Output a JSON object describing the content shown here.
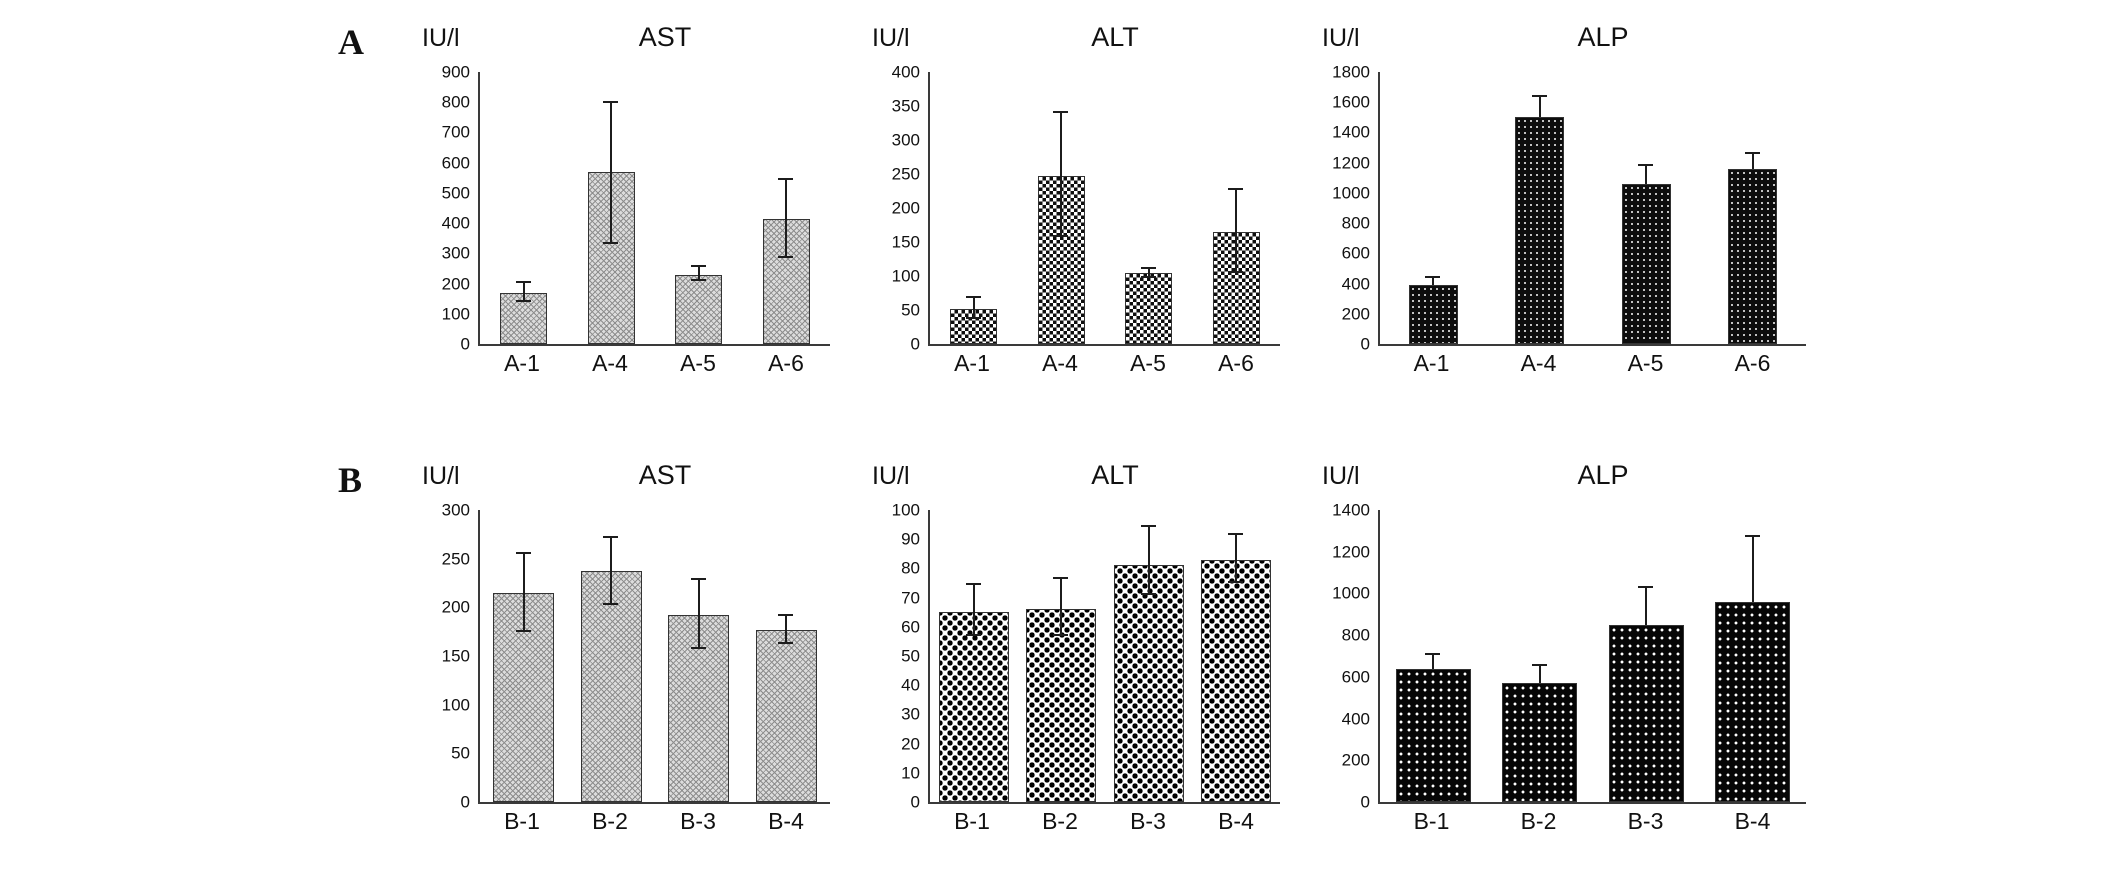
{
  "panels": [
    {
      "label": "A"
    },
    {
      "label": "B"
    }
  ],
  "chart_data": [
    {
      "panel": "A",
      "type": "bar",
      "title": "AST",
      "ylabel": "IU/l",
      "categories": [
        "A-1",
        "A-4",
        "A-5",
        "A-6"
      ],
      "values": [
        170,
        570,
        230,
        415
      ],
      "err_up": [
        40,
        235,
        30,
        135
      ],
      "err_dn": [
        30,
        240,
        20,
        130
      ],
      "ylim": [
        0,
        900
      ],
      "ytick": 100,
      "grid": false,
      "legend": "none",
      "pattern": "p-graycross"
    },
    {
      "panel": "A",
      "type": "bar",
      "title": "ALT",
      "ylabel": "IU/l",
      "categories": [
        "A-1",
        "A-4",
        "A-5",
        "A-6"
      ],
      "values": [
        52,
        247,
        105,
        165
      ],
      "err_up": [
        18,
        95,
        8,
        65
      ],
      "err_dn": [
        15,
        90,
        8,
        60
      ],
      "ylim": [
        0,
        400
      ],
      "ytick": 50,
      "grid": false,
      "legend": "none",
      "pattern": "p-checker"
    },
    {
      "panel": "A",
      "type": "bar",
      "title": "ALP",
      "ylabel": "IU/l",
      "categories": [
        "A-1",
        "A-4",
        "A-5",
        "A-6"
      ],
      "values": [
        390,
        1500,
        1060,
        1160
      ],
      "err_up": [
        60,
        150,
        130,
        110
      ],
      "err_dn": [
        0,
        0,
        0,
        0
      ],
      "ylim": [
        0,
        1800
      ],
      "ytick": 200,
      "grid": false,
      "legend": "none",
      "pattern": "p-densedark"
    },
    {
      "panel": "B",
      "type": "bar",
      "title": "AST",
      "ylabel": "IU/l",
      "categories": [
        "B-1",
        "B-2",
        "B-3",
        "B-4"
      ],
      "values": [
        215,
        237,
        192,
        177
      ],
      "err_up": [
        42,
        36,
        38,
        16
      ],
      "err_dn": [
        40,
        35,
        35,
        15
      ],
      "ylim": [
        0,
        300
      ],
      "ytick": 50,
      "grid": false,
      "legend": "none",
      "pattern": "p-graycross"
    },
    {
      "panel": "B",
      "type": "bar",
      "title": "ALT",
      "ylabel": "IU/l",
      "categories": [
        "B-1",
        "B-2",
        "B-3",
        "B-4"
      ],
      "values": [
        65,
        66,
        81,
        83
      ],
      "err_up": [
        10,
        11,
        14,
        9
      ],
      "err_dn": [
        8,
        9,
        10,
        8
      ],
      "ylim": [
        0,
        100
      ],
      "ytick": 10,
      "grid": false,
      "legend": "none",
      "pattern": "p-diamond"
    },
    {
      "panel": "B",
      "type": "bar",
      "title": "ALP",
      "ylabel": "IU/l",
      "categories": [
        "B-1",
        "B-2",
        "B-3",
        "B-4"
      ],
      "values": [
        640,
        570,
        850,
        960
      ],
      "err_up": [
        75,
        90,
        185,
        320
      ],
      "err_dn": [
        0,
        0,
        0,
        0
      ],
      "ylim": [
        0,
        1400
      ],
      "ytick": 200,
      "grid": false,
      "legend": "none",
      "pattern": "p-blackdot"
    }
  ]
}
